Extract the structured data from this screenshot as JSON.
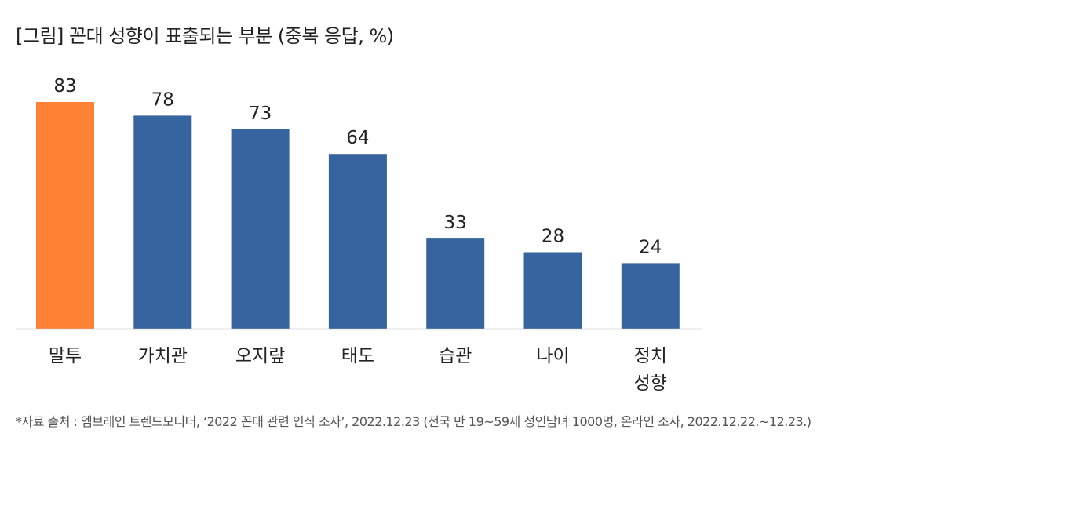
{
  "title": "[그림] 꼰대 성향이 표출되는 부분 (중복 응답, %)",
  "source": "*자료 출처 : 엠브레인 트렌드모니터, ‘2022 꼰대 관련 인식 조사’, 2022.12.23 (전국 만 19~59세 성인남녀 1000명, 온라인 조사, 2022.12.22.~12.23.)",
  "chart_data": {
    "type": "bar",
    "title": "[그림] 꼰대 성향이 표출되는 부분 (중복 응답, %)",
    "xlabel": "",
    "ylabel": "",
    "categories": [
      [
        "말투"
      ],
      [
        "가치관"
      ],
      [
        "오지랖"
      ],
      [
        "태도"
      ],
      [
        "습관"
      ],
      [
        "나이"
      ],
      [
        "정치",
        "성향"
      ]
    ],
    "values": [
      83,
      78,
      73,
      64,
      33,
      28,
      24
    ],
    "value_labels": [
      "83",
      "78",
      "73",
      "64",
      "33",
      "28",
      "24"
    ],
    "ylim": [
      0,
      83
    ],
    "grid": false,
    "legend": "none",
    "highlight_index": 0,
    "colors": {
      "highlight": "#FF8133",
      "default": "#36649E",
      "axis": "#BFBFBF",
      "text": "#222222"
    }
  }
}
